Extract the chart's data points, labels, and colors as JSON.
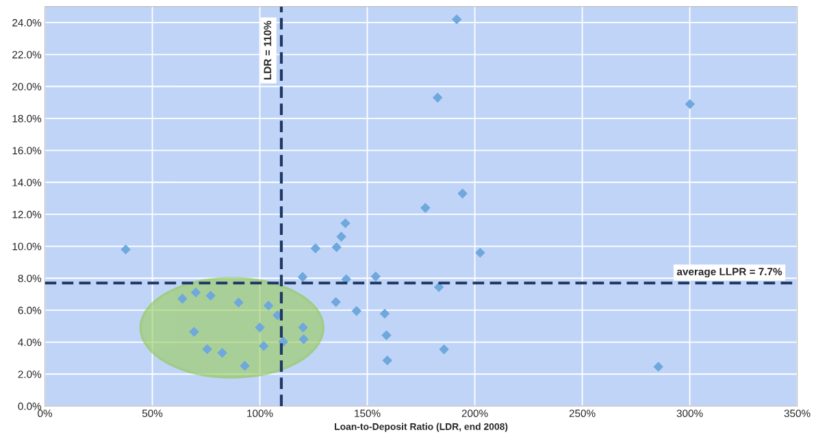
{
  "chart_data": {
    "type": "scatter",
    "xlabel": "Loan-to-Deposit Ratio (LDR, end 2008)",
    "x": [
      37.6,
      64.0,
      70.2,
      77.1,
      90.1,
      104.0,
      108.2,
      69.4,
      100.0,
      120.1,
      120.4,
      110.9,
      101.8,
      75.5,
      82.5,
      93.0,
      119.9,
      125.9,
      135.7,
      137.9,
      139.8,
      140.2,
      153.9,
      177.0,
      194.3,
      202.5,
      183.3,
      135.4,
      145.0,
      158.1,
      158.9,
      159.3,
      185.7,
      191.6,
      182.7,
      300.1,
      285.4
    ],
    "values": [
      9.8,
      6.72,
      7.11,
      6.91,
      6.48,
      6.29,
      5.68,
      4.65,
      4.92,
      4.92,
      4.19,
      4.03,
      3.76,
      3.56,
      3.33,
      2.52,
      8.08,
      9.87,
      9.94,
      10.6,
      11.44,
      7.94,
      8.11,
      12.4,
      13.3,
      9.6,
      7.44,
      6.51,
      5.95,
      5.78,
      4.43,
      2.86,
      3.55,
      24.2,
      19.3,
      18.9,
      2.46
    ],
    "color": "#6fa8dc",
    "marker": "diamond",
    "grid": true,
    "xlim": [
      0,
      350
    ],
    "ylim": [
      0,
      25
    ],
    "xticks": [
      {
        "value": 0,
        "label": "0%"
      },
      {
        "value": 50,
        "label": "50%"
      },
      {
        "value": 100,
        "label": "100%"
      },
      {
        "value": 150,
        "label": "150%"
      },
      {
        "value": 200,
        "label": "200%"
      },
      {
        "value": 250,
        "label": "250%"
      },
      {
        "value": 300,
        "label": "300%"
      },
      {
        "value": 350,
        "label": "350%"
      }
    ],
    "yticks": [
      {
        "value": 0,
        "label": "0.0%"
      },
      {
        "value": 2,
        "label": "2.0%"
      },
      {
        "value": 4,
        "label": "4.0%"
      },
      {
        "value": 6,
        "label": "6.0%"
      },
      {
        "value": 8,
        "label": "8.0%"
      },
      {
        "value": 10,
        "label": "10.0%"
      },
      {
        "value": 12,
        "label": "12.0%"
      },
      {
        "value": 14,
        "label": "14.0%"
      },
      {
        "value": 16,
        "label": "16.0%"
      },
      {
        "value": 18,
        "label": "18.0%"
      },
      {
        "value": 20,
        "label": "20.0%"
      },
      {
        "value": 22,
        "label": "22.0%"
      },
      {
        "value": 24,
        "label": "24.0%"
      }
    ],
    "ref_lines": [
      {
        "axis": "x",
        "value": 110,
        "label": "LDR = 110%",
        "color": "#1f3864",
        "line_style": "dashed"
      },
      {
        "axis": "y",
        "value": 7.7,
        "label": "average LLPR = 7.7%",
        "color": "#1f3864",
        "line_style": "dashed"
      }
    ]
  }
}
